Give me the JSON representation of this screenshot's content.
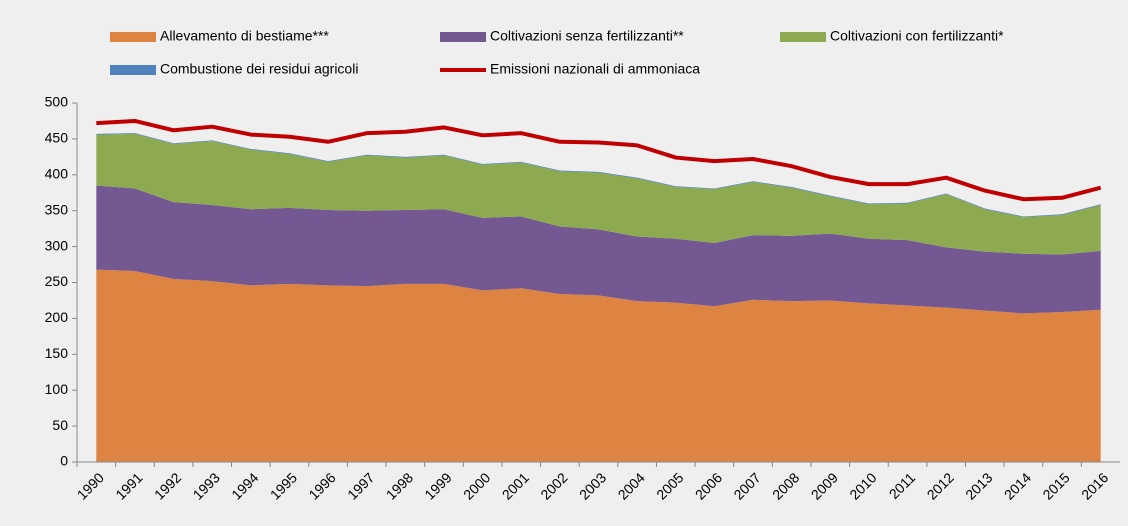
{
  "chart_data": {
    "type": "stacked_area_line",
    "categories": [
      "1990",
      "1991",
      "1992",
      "1993",
      "1994",
      "1995",
      "1996",
      "1997",
      "1998",
      "1999",
      "2000",
      "2001",
      "2002",
      "2003",
      "2004",
      "2005",
      "2006",
      "2007",
      "2008",
      "2009",
      "2010",
      "2011",
      "2012",
      "2013",
      "2014",
      "2015",
      "2016"
    ],
    "series": [
      {
        "name": "Allevamento di bestiame***",
        "color": "#dd8443",
        "kind": "area",
        "values": [
          268,
          266,
          255,
          252,
          246,
          248,
          246,
          245,
          248,
          248,
          239,
          242,
          234,
          232,
          224,
          222,
          217,
          226,
          224,
          225,
          221,
          218,
          215,
          211,
          207,
          209,
          212
        ]
      },
      {
        "name": "Coltivazioni senza fertilizzanti**",
        "color": "#735891",
        "kind": "area",
        "values": [
          117,
          115,
          107,
          106,
          106,
          106,
          105,
          105,
          103,
          104,
          101,
          100,
          94,
          92,
          90,
          89,
          88,
          90,
          91,
          93,
          90,
          91,
          84,
          82,
          83,
          80,
          82
        ]
      },
      {
        "name": "Coltivazioni con fertilizzanti*",
        "color": "#8eaa51",
        "kind": "area",
        "values": [
          71,
          76,
          81,
          89,
          83,
          75,
          67,
          77,
          73,
          75,
          74,
          75,
          77,
          79,
          81,
          72,
          75,
          74,
          67,
          52,
          48,
          51,
          74,
          59,
          51,
          55,
          64
        ]
      },
      {
        "name": "Combustione dei residui agricoli",
        "color": "#4f81bd",
        "kind": "area",
        "values": [
          1,
          1,
          1,
          1,
          1,
          1,
          1,
          1,
          1,
          1,
          1,
          1,
          1,
          1,
          1,
          1,
          1,
          1,
          1,
          1,
          1,
          1,
          1,
          1,
          1,
          1,
          1
        ]
      },
      {
        "name": "Emissioni nazionali di ammoniaca",
        "color": "#c00000",
        "kind": "line",
        "values": [
          472,
          475,
          462,
          467,
          456,
          453,
          446,
          458,
          460,
          466,
          455,
          458,
          446,
          445,
          441,
          424,
          419,
          422,
          412,
          397,
          387,
          387,
          396,
          378,
          366,
          368,
          382
        ]
      }
    ],
    "ylim": [
      0,
      500
    ],
    "yticks": [
      0,
      50,
      100,
      150,
      200,
      250,
      300,
      350,
      400,
      450,
      500
    ]
  }
}
